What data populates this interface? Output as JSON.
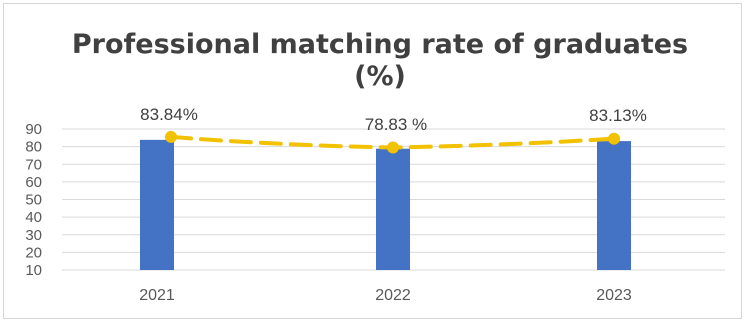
{
  "chart_data": {
    "type": "bar",
    "title": "Professional matching rate of graduates (%)",
    "title_lines": [
      "Professional matching rate of graduates",
      "(%)"
    ],
    "categories": [
      "2021",
      "2022",
      "2023"
    ],
    "series": [
      {
        "values": [
          83.84,
          78.83,
          83.13
        ],
        "data_labels": [
          "83.84%",
          "78.83 %",
          "83.13%"
        ],
        "color": "#4472C4"
      }
    ],
    "overlay_line": {
      "values": [
        85.5,
        79.5,
        84.5
      ],
      "color": "#F2C100",
      "style": "dashed"
    },
    "yticks": [
      90,
      80,
      70,
      60,
      50,
      40,
      30,
      20,
      10
    ],
    "ylim": [
      10,
      90
    ],
    "xlabel": "",
    "ylabel": "",
    "grid": true,
    "legend": "none"
  }
}
